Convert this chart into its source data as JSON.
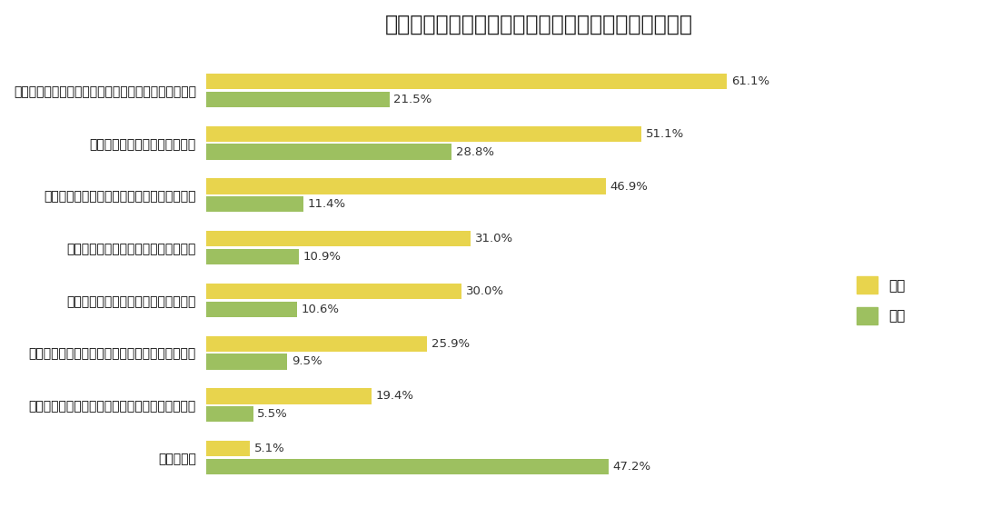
{
  "title": "図表１　「働く上で不公平と感じる内容」（男女別）",
  "categories": [
    "求職中に結婚・出産・育児についての質問を受けた。",
    "年齢が今後の仕事に影響する。",
    "結婚・出産・育児が今後の仕事に影響する。",
    "性別が原因でハラスメントを受ける。",
    "性別による差別を受けたことがある。",
    "性別によって昇給・昇格がスムーズにいかない。",
    "セクシュアルハラスメントを受けたことがある。",
    "ほぼなし。"
  ],
  "female_values": [
    61.1,
    51.1,
    46.9,
    31.0,
    30.0,
    25.9,
    19.4,
    5.1
  ],
  "male_values": [
    21.5,
    28.8,
    11.4,
    10.9,
    10.6,
    9.5,
    5.5,
    47.2
  ],
  "female_color": "#E8D44D",
  "male_color": "#9DC060",
  "female_label": "女性",
  "male_label": "男性",
  "background_color": "#FFFFFF",
  "title_fontsize": 17,
  "label_fontsize": 10.5,
  "value_fontsize": 9.5,
  "xlim": [
    0,
    78
  ],
  "bar_height": 0.3,
  "bar_gap": 0.04
}
